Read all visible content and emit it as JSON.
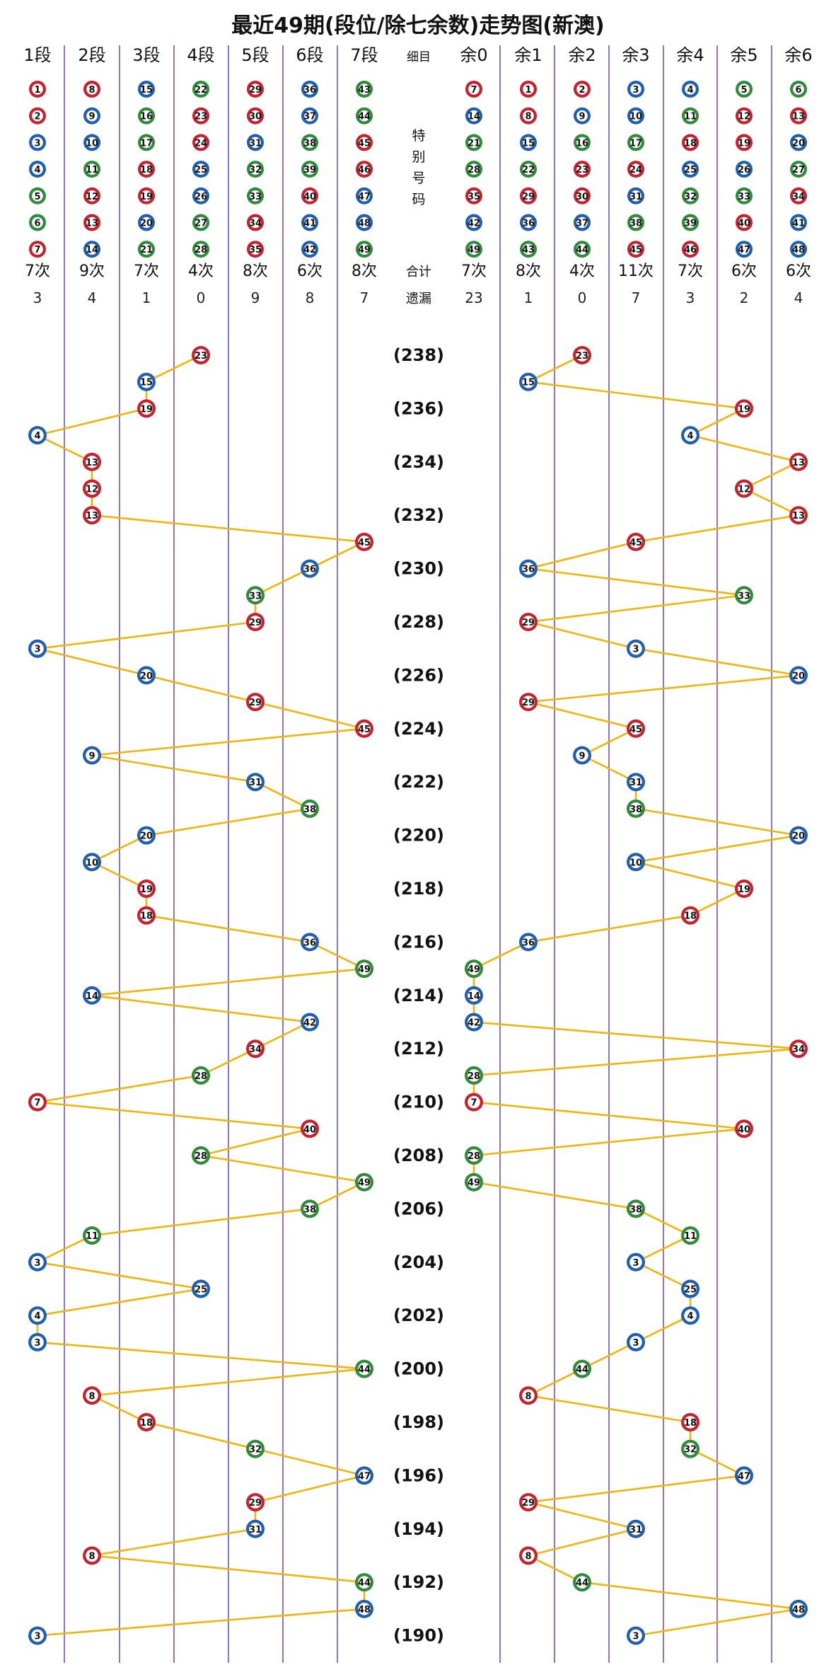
{
  "title": "最近49期(段位/除七余数)走势图(新澳)",
  "colors": {
    "red": "#c8202c",
    "blue": "#1e5fb0",
    "green": "#2e8b3a",
    "line": "#f2b40c",
    "divider": "#5a2a8a",
    "text": "#111111"
  },
  "segments": {
    "headers": [
      "1段",
      "2段",
      "3段",
      "4段",
      "5段",
      "6段",
      "7段"
    ],
    "numbers": [
      [
        1,
        2,
        3,
        4,
        5,
        6,
        7
      ],
      [
        8,
        9,
        10,
        11,
        12,
        13,
        14
      ],
      [
        15,
        16,
        17,
        18,
        19,
        20,
        21
      ],
      [
        22,
        23,
        24,
        25,
        26,
        27,
        28
      ],
      [
        29,
        30,
        31,
        32,
        33,
        34,
        35
      ],
      [
        36,
        37,
        38,
        39,
        40,
        41,
        42
      ],
      [
        43,
        44,
        45,
        46,
        47,
        48,
        49
      ]
    ],
    "counts": [
      "7次",
      "9次",
      "7次",
      "4次",
      "8次",
      "6次",
      "8次"
    ],
    "misses": [
      "3",
      "4",
      "1",
      "0",
      "9",
      "8",
      "7"
    ]
  },
  "remainders": {
    "headers": [
      "余0",
      "余1",
      "余2",
      "余3",
      "余4",
      "余5",
      "余6"
    ],
    "numbers": [
      [
        7,
        14,
        21,
        28,
        35,
        42,
        49
      ],
      [
        1,
        8,
        15,
        22,
        29,
        36,
        43
      ],
      [
        2,
        9,
        16,
        23,
        30,
        37,
        44
      ],
      [
        3,
        10,
        17,
        24,
        31,
        38,
        45
      ],
      [
        4,
        11,
        18,
        25,
        32,
        39,
        46
      ],
      [
        5,
        12,
        19,
        26,
        33,
        40,
        47
      ],
      [
        6,
        13,
        20,
        27,
        34,
        41,
        48
      ]
    ],
    "counts": [
      "7次",
      "8次",
      "4次",
      "11次",
      "7次",
      "6次",
      "6次"
    ],
    "misses": [
      "23",
      "1",
      "0",
      "7",
      "3",
      "2",
      "4"
    ]
  },
  "middle": {
    "header": "细目",
    "special": [
      "特",
      "别",
      "号",
      "码"
    ],
    "total_label": "合计",
    "miss_label": "遗漏"
  },
  "ball_colors": {
    "red": [
      1,
      2,
      7,
      8,
      12,
      13,
      18,
      19,
      23,
      24,
      29,
      30,
      34,
      35,
      40,
      45,
      46
    ],
    "blue": [
      3,
      4,
      9,
      10,
      14,
      15,
      20,
      25,
      26,
      31,
      36,
      37,
      41,
      42,
      47,
      48
    ],
    "green": [
      5,
      6,
      11,
      16,
      17,
      21,
      22,
      27,
      28,
      32,
      33,
      38,
      39,
      43,
      44,
      49
    ]
  },
  "chart_data": {
    "type": "line",
    "title": "最近49期(段位/除七余数)走势图(新澳)",
    "draws": [
      {
        "period": 238,
        "number": 23
      },
      {
        "period": 237,
        "number": 15
      },
      {
        "period": 236,
        "number": 19
      },
      {
        "period": 235,
        "number": 4
      },
      {
        "period": 234,
        "number": 13
      },
      {
        "period": 233,
        "number": 12
      },
      {
        "period": 232,
        "number": 13
      },
      {
        "period": 231,
        "number": 45
      },
      {
        "period": 230,
        "number": 36
      },
      {
        "period": 229,
        "number": 33
      },
      {
        "period": 228,
        "number": 29
      },
      {
        "period": 227,
        "number": 3
      },
      {
        "period": 226,
        "number": 20
      },
      {
        "period": 225,
        "number": 29
      },
      {
        "period": 224,
        "number": 45
      },
      {
        "period": 223,
        "number": 9
      },
      {
        "period": 222,
        "number": 31
      },
      {
        "period": 221,
        "number": 38
      },
      {
        "period": 220,
        "number": 20
      },
      {
        "period": 219,
        "number": 10
      },
      {
        "period": 218,
        "number": 19
      },
      {
        "period": 217,
        "number": 18
      },
      {
        "period": 216,
        "number": 36
      },
      {
        "period": 215,
        "number": 49
      },
      {
        "period": 214,
        "number": 14
      },
      {
        "period": 213,
        "number": 42
      },
      {
        "period": 212,
        "number": 34
      },
      {
        "period": 211,
        "number": 28
      },
      {
        "period": 210,
        "number": 7
      },
      {
        "period": 209,
        "number": 40
      },
      {
        "period": 208,
        "number": 28
      },
      {
        "period": 207,
        "number": 49
      },
      {
        "period": 206,
        "number": 38
      },
      {
        "period": 205,
        "number": 11
      },
      {
        "period": 204,
        "number": 3
      },
      {
        "period": 203,
        "number": 25
      },
      {
        "period": 202,
        "number": 4
      },
      {
        "period": 201,
        "number": 3
      },
      {
        "period": 200,
        "number": 44
      },
      {
        "period": 199,
        "number": 8
      },
      {
        "period": 198,
        "number": 18
      },
      {
        "period": 197,
        "number": 32
      },
      {
        "period": 196,
        "number": 47
      },
      {
        "period": 195,
        "number": 29
      },
      {
        "period": 194,
        "number": 31
      },
      {
        "period": 193,
        "number": 8
      },
      {
        "period": 192,
        "number": 44
      },
      {
        "period": 191,
        "number": 48
      },
      {
        "period": 190,
        "number": 3
      }
    ],
    "period_labels": [
      238,
      236,
      234,
      232,
      230,
      228,
      226,
      224,
      222,
      220,
      218,
      216,
      214,
      212,
      210,
      208,
      206,
      204,
      202,
      200,
      198,
      196,
      194,
      192,
      190
    ]
  }
}
